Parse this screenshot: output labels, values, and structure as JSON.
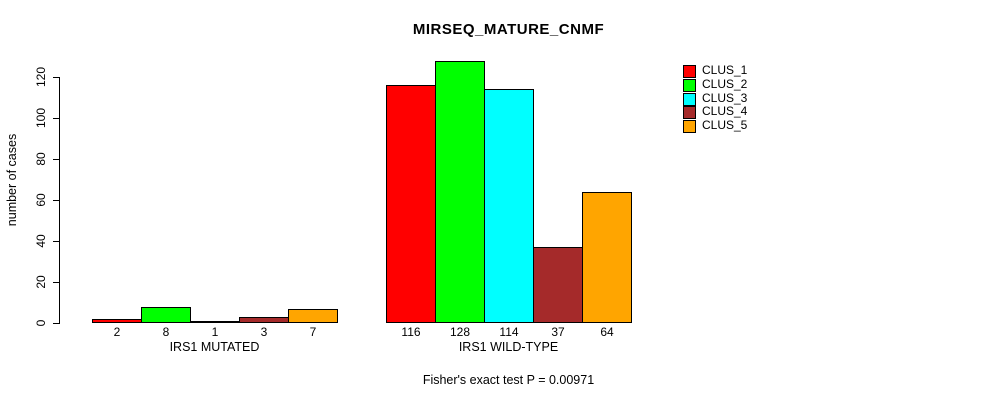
{
  "title": "MIRSEQ_MATURE_CNMF",
  "ylabel": "number of cases",
  "caption": "Fisher's exact test P = 0.00971",
  "chart_data": {
    "type": "bar",
    "title": "MIRSEQ_MATURE_CNMF",
    "xlabel": "",
    "ylabel": "number of cases",
    "annotation": "Fisher's exact test P = 0.00971",
    "grid": false,
    "legend_position": "right",
    "ylim": [
      0,
      130
    ],
    "yticks": [
      0,
      20,
      40,
      60,
      80,
      100,
      120
    ],
    "groups": [
      {
        "label": "IRS1 MUTATED",
        "values": [
          2,
          8,
          1,
          3,
          7
        ]
      },
      {
        "label": "IRS1 WILD-TYPE",
        "values": [
          116,
          128,
          114,
          37,
          64
        ]
      }
    ],
    "series": [
      {
        "name": "CLUS_1",
        "color": "#FF0000",
        "values": [
          2,
          116
        ]
      },
      {
        "name": "CLUS_2",
        "color": "#00FF00",
        "values": [
          8,
          128
        ]
      },
      {
        "name": "CLUS_3",
        "color": "#00FFFF",
        "values": [
          1,
          114
        ]
      },
      {
        "name": "CLUS_4",
        "color": "#A52A2A",
        "values": [
          3,
          37
        ]
      },
      {
        "name": "CLUS_5",
        "color": "#FFA500",
        "values": [
          7,
          64
        ]
      }
    ],
    "colors": {
      "axis": "#000000",
      "text": "#000000",
      "background": "#FFFFFF"
    }
  }
}
